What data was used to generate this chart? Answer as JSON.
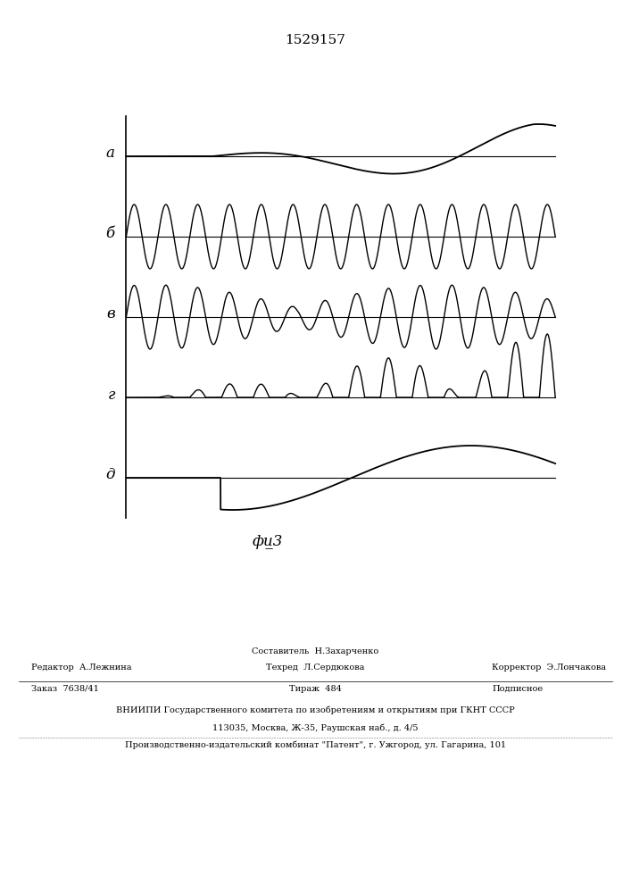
{
  "title": "1529157",
  "fig_label": "фи̲3",
  "background_color": "#ffffff",
  "line_color": "#000000",
  "title_fontsize": 11,
  "label_fontsize": 12,
  "figlabel_fontsize": 12,
  "row_labels": [
    "а",
    "б",
    "в",
    "г",
    "д"
  ],
  "figsize": [
    7.07,
    10.0
  ],
  "dpi": 100,
  "footer": {
    "line1_center": "Составитель  Н.Захарченко",
    "line2_left": "Редактор  А.Лежнина",
    "line2_center": "Техред  Л.Сердюкова",
    "line2_right": "Корректор  Э.Лончакова",
    "line3_left": "Заказ  7638/41",
    "line3_center": "Тираж  484",
    "line3_right": "Подписное",
    "line4": "ВНИИПИ Государственного комитета по изобретениям и открытиям при ГКНТ СССР",
    "line5": "113035, Москва, Ж-35, Раушская наб., д. 4/5",
    "line6": "Производственно-издательский комбинат \"Патент\", г. Ужгород, ул. Гагарина, 101"
  }
}
